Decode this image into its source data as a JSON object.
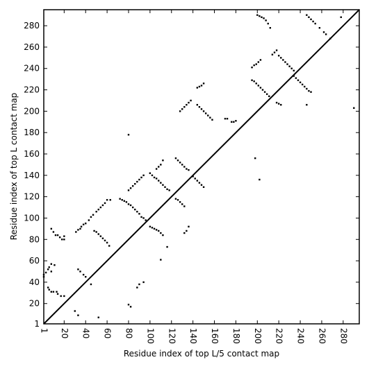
{
  "chart_data": {
    "type": "scatter",
    "title": "",
    "xlabel": "Residue index of top L/5 contact map",
    "ylabel": "Residue index of top L contact map",
    "xlim": [
      1,
      295
    ],
    "ylim": [
      1,
      295
    ],
    "x_ticks": [
      1,
      20,
      40,
      60,
      80,
      100,
      120,
      140,
      160,
      180,
      200,
      220,
      240,
      260,
      280
    ],
    "y_ticks": [
      1,
      20,
      40,
      60,
      80,
      100,
      120,
      140,
      160,
      180,
      200,
      220,
      240,
      260,
      280
    ],
    "diagonal": {
      "from": [
        1,
        1
      ],
      "to": [
        295,
        295
      ]
    },
    "grid": false,
    "legend": "none",
    "marker_color": "#000000",
    "series": [
      {
        "points": [
          [
            1,
            45
          ],
          [
            1,
            47
          ],
          [
            3,
            49
          ],
          [
            5,
            52
          ],
          [
            6,
            54
          ],
          [
            8,
            57
          ],
          [
            8,
            50
          ],
          [
            11,
            56
          ],
          [
            5,
            35
          ],
          [
            6,
            33
          ],
          [
            8,
            31
          ],
          [
            10,
            31
          ],
          [
            13,
            31
          ],
          [
            14,
            29
          ],
          [
            17,
            27
          ],
          [
            20,
            27
          ],
          [
            8,
            90
          ],
          [
            10,
            87
          ],
          [
            12,
            84
          ],
          [
            14,
            84
          ],
          [
            16,
            82
          ],
          [
            18,
            80
          ],
          [
            20,
            80
          ],
          [
            20,
            83
          ],
          [
            31,
            87
          ],
          [
            33,
            89
          ],
          [
            35,
            90
          ],
          [
            36,
            92
          ],
          [
            38,
            94
          ],
          [
            40,
            95
          ],
          [
            43,
            98
          ],
          [
            45,
            101
          ],
          [
            47,
            103
          ],
          [
            50,
            106
          ],
          [
            52,
            108
          ],
          [
            54,
            110
          ],
          [
            56,
            112
          ],
          [
            58,
            114
          ],
          [
            60,
            117
          ],
          [
            63,
            117
          ],
          [
            33,
            52
          ],
          [
            35,
            50
          ],
          [
            38,
            47
          ],
          [
            40,
            45
          ],
          [
            45,
            38
          ],
          [
            48,
            88
          ],
          [
            50,
            87
          ],
          [
            52,
            85
          ],
          [
            54,
            83
          ],
          [
            56,
            81
          ],
          [
            58,
            79
          ],
          [
            60,
            77
          ],
          [
            62,
            74
          ],
          [
            30,
            13
          ],
          [
            33,
            9
          ],
          [
            52,
            7
          ],
          [
            80,
            19
          ],
          [
            82,
            17
          ],
          [
            80,
            178
          ],
          [
            72,
            118
          ],
          [
            74,
            117
          ],
          [
            76,
            116
          ],
          [
            78,
            115
          ],
          [
            80,
            113
          ],
          [
            82,
            112
          ],
          [
            84,
            110
          ],
          [
            86,
            108
          ],
          [
            88,
            106
          ],
          [
            90,
            104
          ],
          [
            92,
            101
          ],
          [
            94,
            100
          ],
          [
            96,
            98
          ],
          [
            80,
            126
          ],
          [
            82,
            128
          ],
          [
            84,
            130
          ],
          [
            86,
            132
          ],
          [
            88,
            134
          ],
          [
            90,
            136
          ],
          [
            92,
            138
          ],
          [
            94,
            140
          ],
          [
            88,
            35
          ],
          [
            90,
            38
          ],
          [
            94,
            40
          ],
          [
            100,
            92
          ],
          [
            102,
            91
          ],
          [
            104,
            90
          ],
          [
            106,
            89
          ],
          [
            108,
            88
          ],
          [
            110,
            86
          ],
          [
            112,
            84
          ],
          [
            100,
            142
          ],
          [
            102,
            140
          ],
          [
            104,
            138
          ],
          [
            106,
            137
          ],
          [
            108,
            135
          ],
          [
            110,
            133
          ],
          [
            112,
            131
          ],
          [
            114,
            129
          ],
          [
            116,
            127
          ],
          [
            118,
            126
          ],
          [
            106,
            146
          ],
          [
            108,
            148
          ],
          [
            110,
            150
          ],
          [
            112,
            154
          ],
          [
            110,
            61
          ],
          [
            116,
            73
          ],
          [
            124,
            156
          ],
          [
            126,
            154
          ],
          [
            128,
            152
          ],
          [
            130,
            150
          ],
          [
            132,
            148
          ],
          [
            134,
            146
          ],
          [
            136,
            145
          ],
          [
            124,
            118
          ],
          [
            126,
            117
          ],
          [
            128,
            115
          ],
          [
            130,
            113
          ],
          [
            132,
            111
          ],
          [
            132,
            86
          ],
          [
            134,
            88
          ],
          [
            136,
            92
          ],
          [
            128,
            200
          ],
          [
            130,
            202
          ],
          [
            132,
            204
          ],
          [
            134,
            206
          ],
          [
            136,
            208
          ],
          [
            138,
            210
          ],
          [
            140,
            139
          ],
          [
            142,
            137
          ],
          [
            144,
            135
          ],
          [
            146,
            133
          ],
          [
            148,
            131
          ],
          [
            150,
            129
          ],
          [
            144,
            206
          ],
          [
            146,
            204
          ],
          [
            148,
            202
          ],
          [
            150,
            200
          ],
          [
            152,
            198
          ],
          [
            154,
            196
          ],
          [
            156,
            194
          ],
          [
            158,
            192
          ],
          [
            144,
            222
          ],
          [
            146,
            223
          ],
          [
            148,
            224
          ],
          [
            150,
            226
          ],
          [
            170,
            193
          ],
          [
            172,
            193
          ],
          [
            176,
            190
          ],
          [
            178,
            190
          ],
          [
            180,
            191
          ],
          [
            195,
            229
          ],
          [
            197,
            228
          ],
          [
            199,
            226
          ],
          [
            201,
            224
          ],
          [
            203,
            222
          ],
          [
            205,
            220
          ],
          [
            207,
            218
          ],
          [
            209,
            216
          ],
          [
            211,
            214
          ],
          [
            195,
            241
          ],
          [
            197,
            243
          ],
          [
            199,
            244
          ],
          [
            201,
            246
          ],
          [
            203,
            248
          ],
          [
            198,
            156
          ],
          [
            202,
            136
          ],
          [
            200,
            290
          ],
          [
            202,
            289
          ],
          [
            204,
            288
          ],
          [
            206,
            287
          ],
          [
            208,
            285
          ],
          [
            210,
            282
          ],
          [
            212,
            278
          ],
          [
            214,
            253
          ],
          [
            216,
            255
          ],
          [
            218,
            257
          ],
          [
            220,
            252
          ],
          [
            222,
            250
          ],
          [
            224,
            248
          ],
          [
            226,
            246
          ],
          [
            228,
            244
          ],
          [
            230,
            242
          ],
          [
            232,
            240
          ],
          [
            234,
            238
          ],
          [
            218,
            208
          ],
          [
            220,
            207
          ],
          [
            222,
            206
          ],
          [
            234,
            233
          ],
          [
            236,
            231
          ],
          [
            238,
            229
          ],
          [
            240,
            227
          ],
          [
            242,
            225
          ],
          [
            244,
            223
          ],
          [
            246,
            221
          ],
          [
            248,
            219
          ],
          [
            250,
            218
          ],
          [
            246,
            290
          ],
          [
            248,
            288
          ],
          [
            250,
            286
          ],
          [
            252,
            284
          ],
          [
            254,
            282
          ],
          [
            258,
            278
          ],
          [
            262,
            274
          ],
          [
            264,
            272
          ],
          [
            268,
            268
          ],
          [
            246,
            206
          ],
          [
            278,
            288
          ],
          [
            290,
            203
          ]
        ]
      }
    ]
  }
}
